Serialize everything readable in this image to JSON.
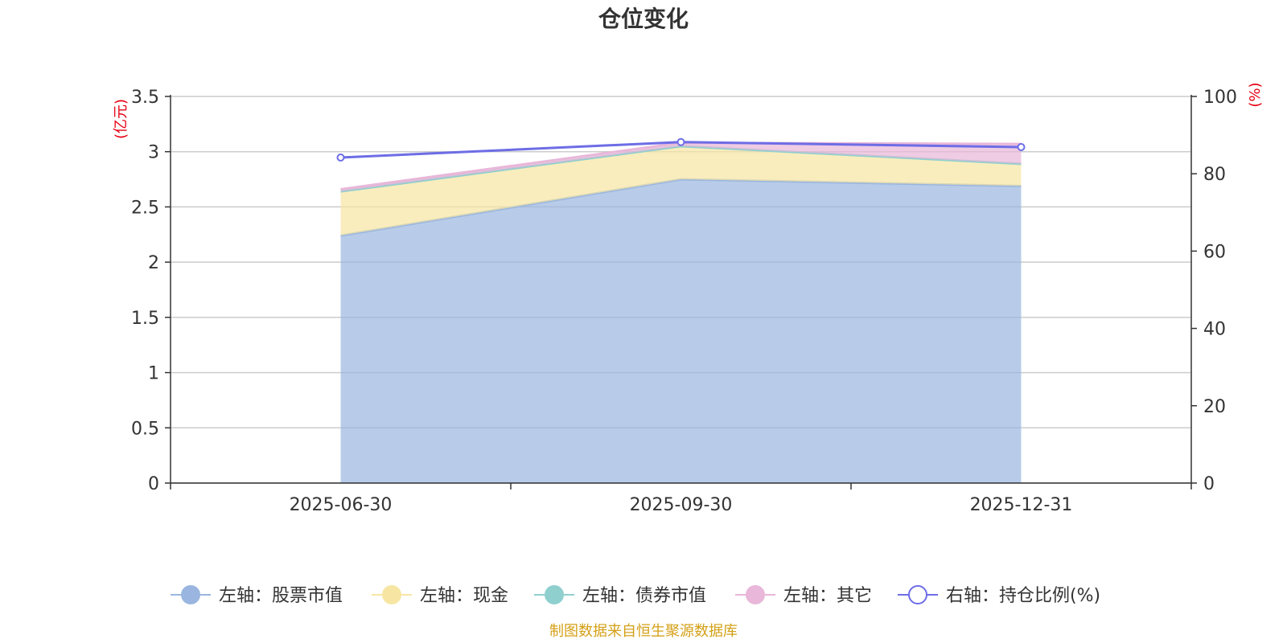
{
  "chart_data": {
    "type": "area",
    "title": "仓位变化",
    "categories": [
      "2025-06-30",
      "2025-09-30",
      "2025-12-31"
    ],
    "left_axis": {
      "unit": "(亿元)",
      "range": [
        0,
        3.5
      ],
      "ticks": [
        "0",
        "0.5",
        "1",
        "1.5",
        "2",
        "2.5",
        "3",
        "3.5"
      ]
    },
    "right_axis": {
      "unit": "(%)",
      "range": [
        0,
        100
      ],
      "ticks": [
        "0",
        "20",
        "40",
        "60",
        "80",
        "100"
      ]
    },
    "stacked": true,
    "series": [
      {
        "name": "左轴：股票市值",
        "axis": "left",
        "type": "area",
        "color": "#9ab6e0",
        "values": [
          2.24,
          2.75,
          2.69
        ]
      },
      {
        "name": "左轴：现金",
        "axis": "left",
        "type": "area",
        "color": "#f7e6a3",
        "values": [
          0.4,
          0.3,
          0.2
        ]
      },
      {
        "name": "左轴：债券市值",
        "axis": "left",
        "type": "area",
        "color": "#8fd0cf",
        "values": [
          0,
          0,
          0
        ]
      },
      {
        "name": "左轴：其它",
        "axis": "left",
        "type": "area",
        "color": "#e8b7d9",
        "values": [
          0.02,
          0.03,
          0.18
        ]
      },
      {
        "name": "右轴：持仓比例(%)",
        "axis": "right",
        "type": "line",
        "color": "#6d6de6",
        "values": [
          84.2,
          88.2,
          86.9
        ]
      }
    ],
    "grid": true,
    "legend": "bottom"
  },
  "footer": "制图数据来自恒生聚源数据库"
}
